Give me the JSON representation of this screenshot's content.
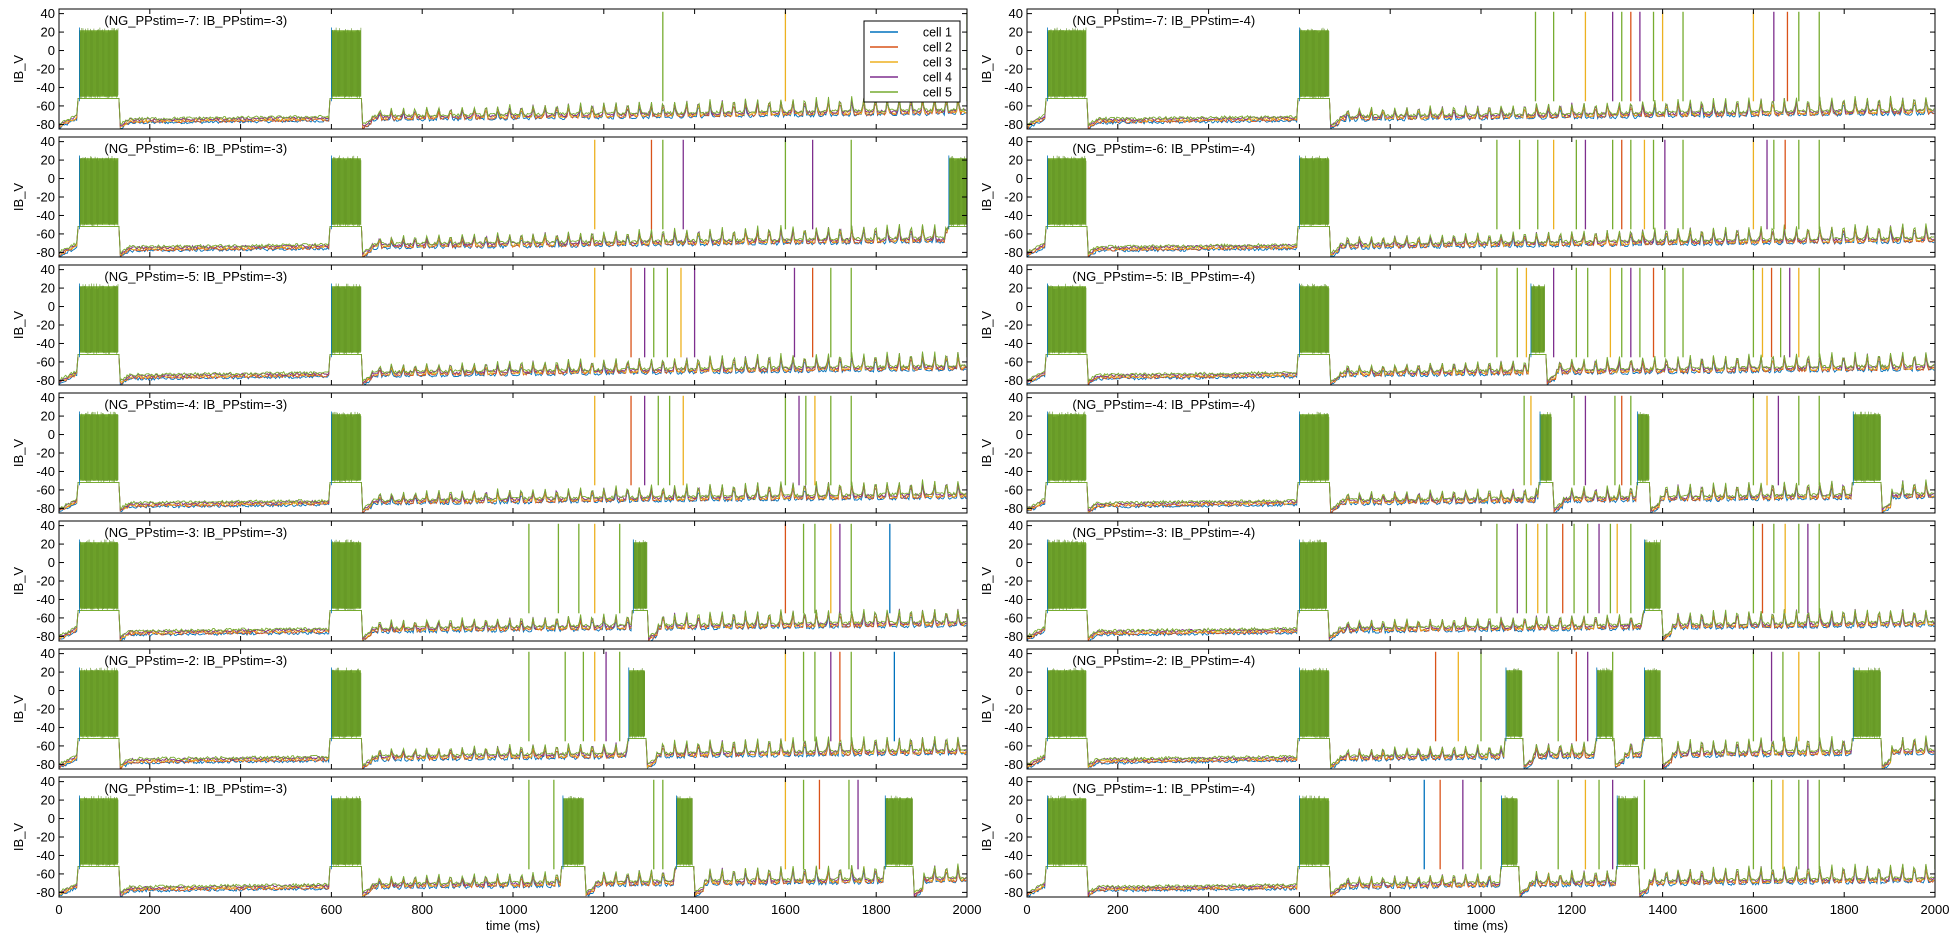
{
  "chart_data": {
    "type": "line",
    "xlabel": "time (ms)",
    "ylabel": "IB_V",
    "xlim": [
      0,
      2000
    ],
    "ylim": [
      -85,
      45
    ],
    "xticks": [
      0,
      200,
      400,
      600,
      800,
      1000,
      1200,
      1400,
      1600,
      1800,
      2000
    ],
    "yticks": [
      40,
      20,
      0,
      -20,
      -40,
      -60,
      -80
    ],
    "grid": false,
    "legend_position": "top-right of first panel",
    "series": [
      {
        "name": "cell 1",
        "color": "#0072BD"
      },
      {
        "name": "cell 2",
        "color": "#D95319"
      },
      {
        "name": "cell 3",
        "color": "#EDB120"
      },
      {
        "name": "cell 4",
        "color": "#7E2F8E"
      },
      {
        "name": "cell 5",
        "color": "#77AC30"
      }
    ],
    "panels": [
      {
        "title": "(NG_PPstim=-7: IB_PPstim=-3)",
        "bursts": [
          [
            45,
            130
          ],
          [
            600,
            665
          ]
        ],
        "spikes": [
          [
            1330,
            4
          ],
          [
            1600,
            2
          ],
          [
            2000,
            4
          ]
        ]
      },
      {
        "title": "(NG_PPstim=-6: IB_PPstim=-3)",
        "bursts": [
          [
            45,
            130
          ],
          [
            600,
            665
          ],
          [
            1960,
            2000
          ]
        ],
        "spikes": [
          [
            1180,
            2
          ],
          [
            1305,
            1
          ],
          [
            1330,
            4
          ],
          [
            1375,
            3
          ],
          [
            1600,
            4
          ],
          [
            1660,
            3
          ],
          [
            1745,
            4
          ]
        ]
      },
      {
        "title": "(NG_PPstim=-5: IB_PPstim=-3)",
        "bursts": [
          [
            45,
            130
          ],
          [
            600,
            665
          ]
        ],
        "spikes": [
          [
            1180,
            2
          ],
          [
            1260,
            1
          ],
          [
            1290,
            3
          ],
          [
            1310,
            4
          ],
          [
            1340,
            4
          ],
          [
            1370,
            2
          ],
          [
            1400,
            3
          ],
          [
            1620,
            3
          ],
          [
            1660,
            1
          ],
          [
            1700,
            4
          ],
          [
            1745,
            4
          ],
          [
            2000,
            4
          ]
        ]
      },
      {
        "title": "(NG_PPstim=-4: IB_PPstim=-3)",
        "bursts": [
          [
            45,
            130
          ],
          [
            600,
            665
          ]
        ],
        "spikes": [
          [
            1180,
            2
          ],
          [
            1260,
            1
          ],
          [
            1290,
            3
          ],
          [
            1320,
            4
          ],
          [
            1345,
            4
          ],
          [
            1375,
            2
          ],
          [
            1600,
            4
          ],
          [
            1630,
            3
          ],
          [
            1645,
            4
          ],
          [
            1665,
            2
          ],
          [
            1700,
            4
          ],
          [
            1745,
            4
          ],
          [
            2000,
            4
          ]
        ]
      },
      {
        "title": "(NG_PPstim=-3: IB_PPstim=-3)",
        "bursts": [
          [
            45,
            130
          ],
          [
            600,
            665
          ],
          [
            1265,
            1295
          ]
        ],
        "spikes": [
          [
            1035,
            4
          ],
          [
            1100,
            4
          ],
          [
            1145,
            4
          ],
          [
            1180,
            2
          ],
          [
            1235,
            4
          ],
          [
            1600,
            1
          ],
          [
            1640,
            4
          ],
          [
            1665,
            4
          ],
          [
            1700,
            2
          ],
          [
            1720,
            3
          ],
          [
            1745,
            4
          ],
          [
            1830,
            0
          ],
          [
            2000,
            4
          ]
        ]
      },
      {
        "title": "(NG_PPstim=-2: IB_PPstim=-3)",
        "bursts": [
          [
            45,
            130
          ],
          [
            600,
            665
          ],
          [
            1255,
            1290
          ]
        ],
        "spikes": [
          [
            1035,
            4
          ],
          [
            1115,
            4
          ],
          [
            1155,
            4
          ],
          [
            1180,
            2
          ],
          [
            1205,
            3
          ],
          [
            1235,
            4
          ],
          [
            1600,
            2
          ],
          [
            1640,
            4
          ],
          [
            1665,
            4
          ],
          [
            1700,
            3
          ],
          [
            1720,
            1
          ],
          [
            1745,
            4
          ],
          [
            1840,
            0
          ]
        ]
      },
      {
        "title": "(NG_PPstim=-1: IB_PPstim=-3)",
        "bursts": [
          [
            45,
            130
          ],
          [
            600,
            665
          ],
          [
            1110,
            1155
          ],
          [
            1360,
            1395
          ],
          [
            1820,
            1880
          ]
        ],
        "spikes": [
          [
            1035,
            4
          ],
          [
            1090,
            4
          ],
          [
            1310,
            4
          ],
          [
            1330,
            4
          ],
          [
            1600,
            2
          ],
          [
            1640,
            4
          ],
          [
            1675,
            1
          ],
          [
            1740,
            4
          ],
          [
            1760,
            3
          ]
        ]
      },
      {
        "title": "(NG_PPstim=-7: IB_PPstim=-4)",
        "bursts": [
          [
            45,
            130
          ],
          [
            600,
            665
          ]
        ],
        "spikes": [
          [
            1120,
            4
          ],
          [
            1160,
            4
          ],
          [
            1230,
            2
          ],
          [
            1290,
            3
          ],
          [
            1310,
            4
          ],
          [
            1330,
            1
          ],
          [
            1350,
            3
          ],
          [
            1380,
            4
          ],
          [
            1400,
            2
          ],
          [
            1445,
            4
          ],
          [
            1600,
            2
          ],
          [
            1645,
            3
          ],
          [
            1675,
            1
          ],
          [
            1700,
            4
          ],
          [
            1745,
            4
          ]
        ]
      },
      {
        "title": "(NG_PPstim=-6: IB_PPstim=-4)",
        "bursts": [
          [
            45,
            130
          ],
          [
            600,
            665
          ]
        ],
        "spikes": [
          [
            1035,
            4
          ],
          [
            1085,
            4
          ],
          [
            1125,
            4
          ],
          [
            1160,
            2
          ],
          [
            1210,
            4
          ],
          [
            1230,
            3
          ],
          [
            1290,
            4
          ],
          [
            1310,
            1
          ],
          [
            1330,
            4
          ],
          [
            1360,
            2
          ],
          [
            1380,
            4
          ],
          [
            1405,
            3
          ],
          [
            1445,
            4
          ],
          [
            1600,
            2
          ],
          [
            1630,
            3
          ],
          [
            1645,
            4
          ],
          [
            1670,
            1
          ],
          [
            1700,
            4
          ],
          [
            1745,
            4
          ]
        ]
      },
      {
        "title": "(NG_PPstim=-5: IB_PPstim=-4)",
        "bursts": [
          [
            45,
            130
          ],
          [
            600,
            665
          ],
          [
            1110,
            1140
          ]
        ],
        "spikes": [
          [
            1035,
            4
          ],
          [
            1080,
            4
          ],
          [
            1100,
            2
          ],
          [
            1160,
            3
          ],
          [
            1210,
            4
          ],
          [
            1235,
            4
          ],
          [
            1285,
            2
          ],
          [
            1310,
            4
          ],
          [
            1330,
            3
          ],
          [
            1350,
            4
          ],
          [
            1380,
            1
          ],
          [
            1405,
            4
          ],
          [
            1445,
            4
          ],
          [
            1600,
            4
          ],
          [
            1620,
            2
          ],
          [
            1640,
            1
          ],
          [
            1660,
            4
          ],
          [
            1680,
            3
          ],
          [
            1700,
            2
          ],
          [
            1745,
            4
          ]
        ]
      },
      {
        "title": "(NG_PPstim=-4: IB_PPstim=-4)",
        "bursts": [
          [
            45,
            130
          ],
          [
            600,
            665
          ],
          [
            1130,
            1155
          ],
          [
            1345,
            1370
          ],
          [
            1820,
            1880
          ]
        ],
        "spikes": [
          [
            1095,
            4
          ],
          [
            1110,
            2
          ],
          [
            1205,
            4
          ],
          [
            1230,
            3
          ],
          [
            1295,
            4
          ],
          [
            1310,
            1
          ],
          [
            1330,
            4
          ],
          [
            1600,
            4
          ],
          [
            1630,
            2
          ],
          [
            1655,
            3
          ],
          [
            1700,
            4
          ],
          [
            1745,
            4
          ]
        ]
      },
      {
        "title": "(NG_PPstim=-3: IB_PPstim=-4)",
        "bursts": [
          [
            45,
            130
          ],
          [
            600,
            660
          ],
          [
            1360,
            1395
          ]
        ],
        "spikes": [
          [
            1035,
            4
          ],
          [
            1080,
            3
          ],
          [
            1100,
            4
          ],
          [
            1125,
            2
          ],
          [
            1145,
            4
          ],
          [
            1180,
            1
          ],
          [
            1205,
            4
          ],
          [
            1235,
            4
          ],
          [
            1260,
            3
          ],
          [
            1285,
            4
          ],
          [
            1300,
            2
          ],
          [
            1330,
            4
          ],
          [
            1600,
            4
          ],
          [
            1620,
            1
          ],
          [
            1645,
            4
          ],
          [
            1670,
            2
          ],
          [
            1700,
            4
          ],
          [
            1720,
            3
          ],
          [
            1745,
            4
          ]
        ]
      },
      {
        "title": "(NG_PPstim=-2: IB_PPstim=-4)",
        "bursts": [
          [
            45,
            130
          ],
          [
            600,
            665
          ],
          [
            1055,
            1090
          ],
          [
            1255,
            1290
          ],
          [
            1360,
            1395
          ],
          [
            1820,
            1880
          ]
        ],
        "spikes": [
          [
            900,
            1
          ],
          [
            950,
            2
          ],
          [
            1000,
            4
          ],
          [
            1170,
            4
          ],
          [
            1210,
            1
          ],
          [
            1235,
            3
          ],
          [
            1290,
            4
          ],
          [
            1600,
            4
          ],
          [
            1640,
            3
          ],
          [
            1665,
            4
          ],
          [
            1700,
            2
          ],
          [
            1745,
            4
          ]
        ]
      },
      {
        "title": "(NG_PPstim=-1: IB_PPstim=-4)",
        "bursts": [
          [
            45,
            130
          ],
          [
            600,
            665
          ],
          [
            1045,
            1080
          ],
          [
            1300,
            1345
          ]
        ],
        "spikes": [
          [
            875,
            0
          ],
          [
            910,
            1
          ],
          [
            960,
            3
          ],
          [
            1000,
            4
          ],
          [
            1170,
            4
          ],
          [
            1230,
            2
          ],
          [
            1260,
            4
          ],
          [
            1290,
            3
          ],
          [
            1360,
            4
          ],
          [
            1600,
            4
          ],
          [
            1640,
            4
          ],
          [
            1665,
            2
          ],
          [
            1700,
            4
          ],
          [
            1720,
            3
          ],
          [
            1745,
            4
          ],
          [
            2000,
            4
          ]
        ]
      }
    ]
  }
}
